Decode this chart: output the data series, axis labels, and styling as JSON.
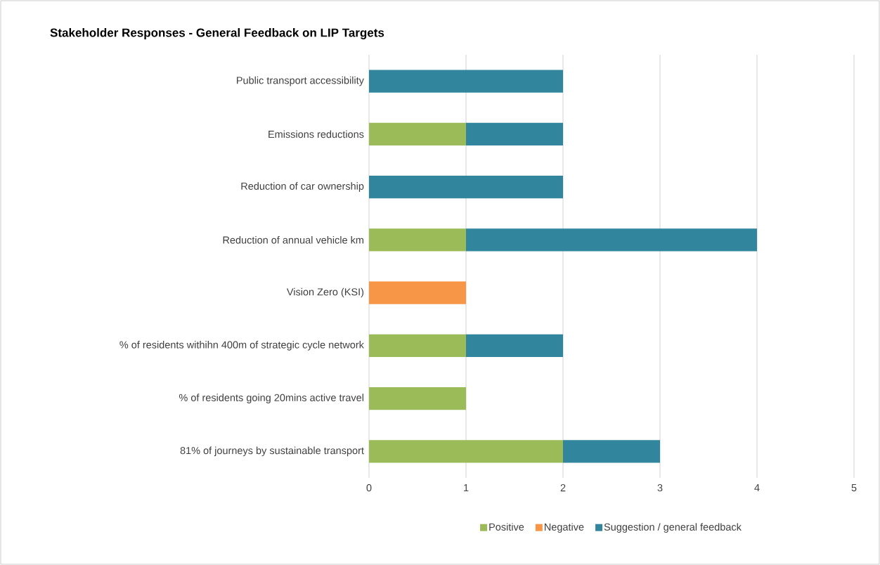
{
  "chart_data": {
    "type": "bar",
    "title": "Stakeholder Responses - General Feedback on LIP Targets",
    "orientation": "horizontal",
    "stacked": true,
    "categories": [
      "Public transport accessibility",
      "Emissions reductions",
      "Reduction of car ownership",
      "Reduction of annual vehicle km",
      "Vision Zero (KSI)",
      "% of residents withihn 400m of strategic cycle network",
      "% of residents going 20mins active travel",
      "81% of journeys by sustainable transport"
    ],
    "series": [
      {
        "name": "Positive",
        "color": "#9bbb59",
        "values": [
          0,
          1,
          0,
          1,
          0,
          1,
          1,
          2
        ]
      },
      {
        "name": "Negative",
        "color": "#f79646",
        "values": [
          0,
          0,
          0,
          0,
          1,
          0,
          0,
          0
        ]
      },
      {
        "name": "Suggestion / general feedback",
        "color": "#31859c",
        "values": [
          2,
          1,
          2,
          3,
          0,
          1,
          0,
          1
        ]
      }
    ],
    "xlim": [
      0,
      5
    ],
    "xticks": [
      0,
      1,
      2,
      3,
      4,
      5
    ],
    "grid": "x",
    "legend": "bottom"
  }
}
